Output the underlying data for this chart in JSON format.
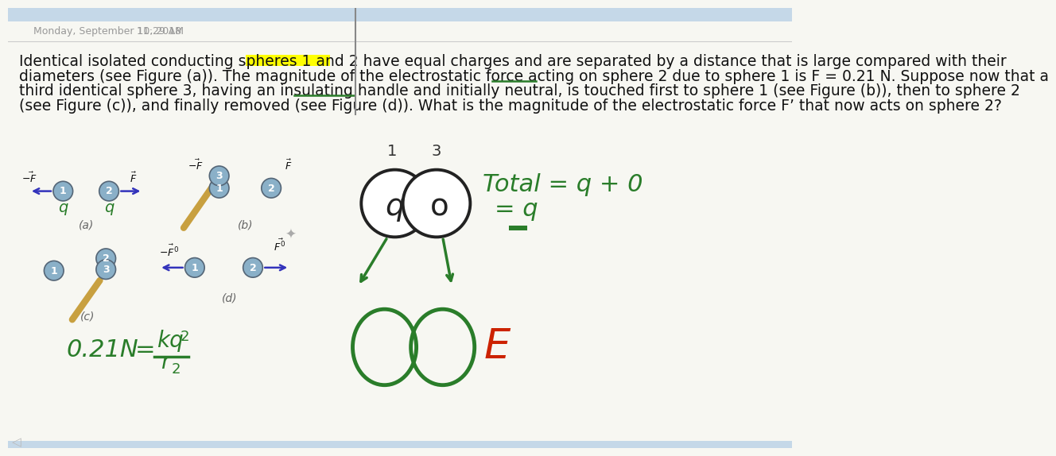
{
  "bg_color": "#f7f7f2",
  "header_bg": "#c5d8e8",
  "sep_line_color": "#cccccc",
  "date_text": "Monday, September 10, 2018",
  "time_text": "11:29 AM",
  "date_color": "#999999",
  "body_color": "#111111",
  "highlight_color": "#ffff00",
  "green_color": "#2a7d2a",
  "blue_color": "#3333bb",
  "sphere_fill": "#8ab0c8",
  "sphere_edge": "#556677",
  "label_color": "#666666",
  "red_color": "#cc2200",
  "handle_color": "#c8a040",
  "line1": "Identical isolated conducting spheres 1 and 2 have equal charges and are separated by a distance that is large compared with their",
  "line2": "diameters (see Figure (a)). The magnitude of the electrostatic force acting on sphere 2 due to sphere 1 is F = 0.21 N. Suppose now that a",
  "line3": "third identical sphere 3, having an insulating handle and initially neutral, is touched first to sphere 1 (see Figure (b)), then to sphere 2",
  "line4": "(see Figure (c)), and finally removed (see Figure (d)). What is the magnitude of the electrostatic force F’ that now acts on sphere 2?",
  "text_fs": 13.5,
  "small_fs": 9.5,
  "fig_label_fs": 10
}
